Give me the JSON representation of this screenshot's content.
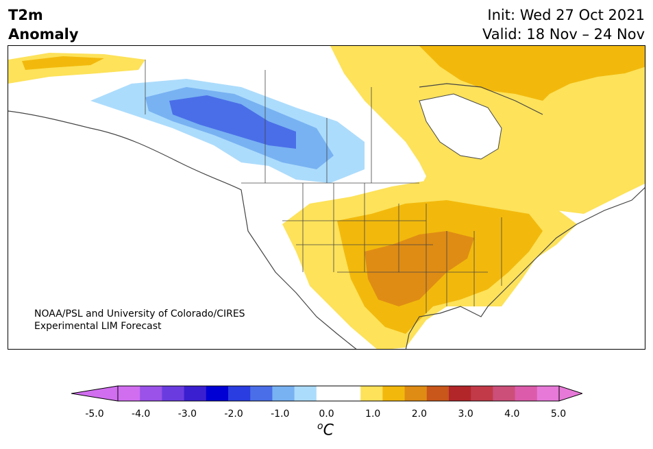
{
  "header": {
    "title_line1": "T2m",
    "title_line2": "Anomaly",
    "init": "Init: Wed 27 Oct 2021",
    "valid": "Valid: 18 Nov – 24 Nov"
  },
  "map": {
    "credit_line1": "NOAA/PSL and University of Colorado/CIRES",
    "credit_line2": "Experimental LIM Forecast"
  },
  "colorbar": {
    "ticks": [
      "-5.0",
      "-4.0",
      "-3.0",
      "-2.0",
      "-1.0",
      "0.0",
      "1.0",
      "2.0",
      "3.0",
      "4.0",
      "5.0"
    ],
    "unit_sup": "o",
    "unit": "C",
    "colors": [
      "#d16ef0",
      "#9a52e8",
      "#6a3ce0",
      "#3a1fd0",
      "#0000d4",
      "#2a3de0",
      "#4a6ee8",
      "#78b2f2",
      "#acdcfc",
      "#ffffff",
      "#ffffff",
      "#fde25a",
      "#f2b90c",
      "#df8c14",
      "#c9561a",
      "#b2262a",
      "#c23a48",
      "#cc4f7a",
      "#dc5cab",
      "#e77ad8"
    ],
    "extend_low_color": "#d16ef0",
    "extend_high_color": "#e77ad8"
  },
  "colors": {
    "light_yellow": "#fde25a",
    "yellow_orange": "#f2b90c",
    "orange": "#df8c14",
    "light_blue": "#acdcfc",
    "mid_blue": "#78b2f2",
    "blue": "#4a6ee8",
    "border": "#444444"
  }
}
